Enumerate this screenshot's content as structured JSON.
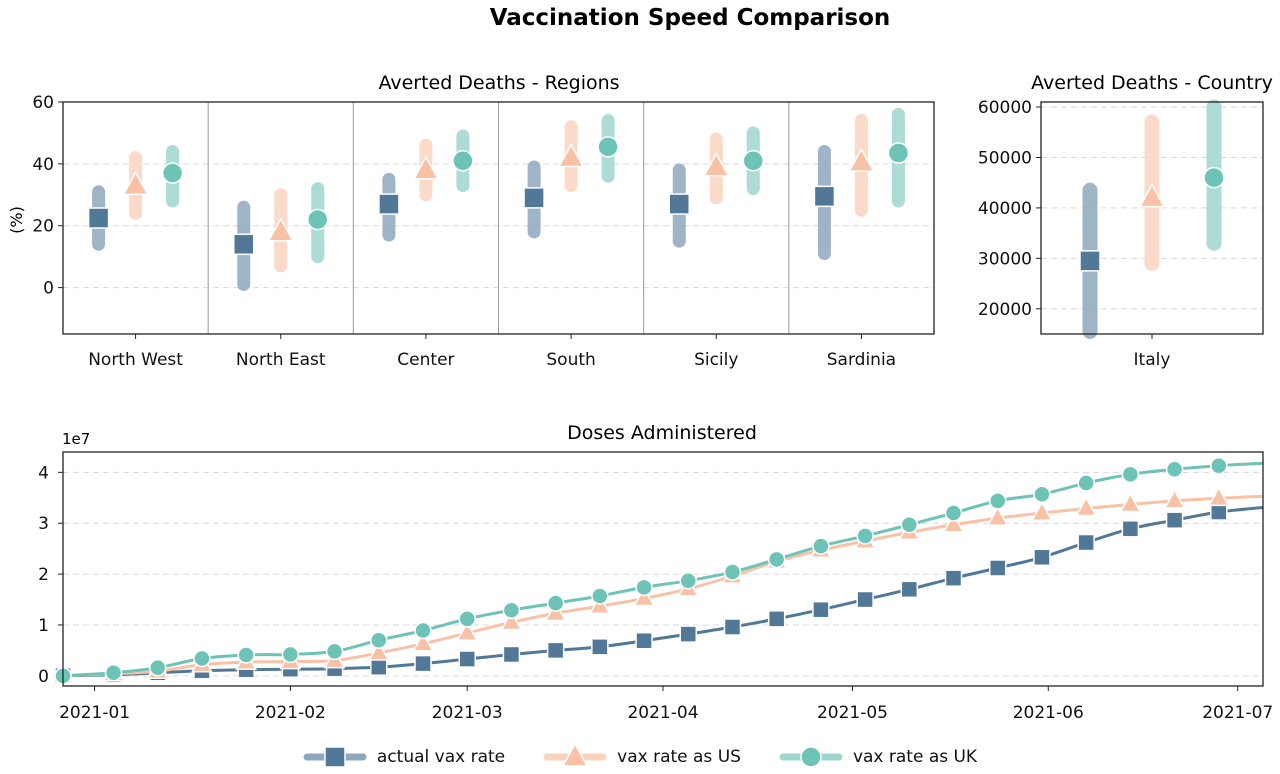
{
  "figure": {
    "title": "Vaccination Speed Comparison"
  },
  "series_styles": [
    {
      "key": "actual",
      "name": "actual vax rate",
      "color": "#517897",
      "light": "#8fa7bd",
      "marker": "square"
    },
    {
      "key": "us",
      "name": "vax rate as US",
      "color": "#f9c2a6",
      "light": "#fad3bf",
      "marker": "triangle"
    },
    {
      "key": "uk",
      "name": "vax rate as UK",
      "color": "#6ec3b7",
      "light": "#9ed6cd",
      "marker": "circle"
    }
  ],
  "chart_data": [
    {
      "type": "scatter",
      "title": "Averted Deaths - Regions",
      "ylabel": "(%)",
      "ylim": [
        -15,
        60
      ],
      "yticks": [
        0,
        20,
        40,
        60
      ],
      "grid": "horizontal dashed",
      "categories": [
        "North West",
        "North East",
        "Center",
        "South",
        "Sicily",
        "Sardinia"
      ],
      "series": [
        {
          "name": "actual vax rate",
          "values": [
            22.5,
            14,
            27,
            29,
            27,
            29.5
          ],
          "low": [
            14,
            1,
            17,
            18,
            15,
            11
          ],
          "high": [
            31,
            26,
            35,
            39,
            38,
            44
          ]
        },
        {
          "name": "vax rate as US",
          "values": [
            33,
            18,
            38,
            42,
            39,
            40.5
          ],
          "low": [
            24,
            7,
            30,
            33,
            29,
            25
          ],
          "high": [
            42,
            30,
            46,
            52,
            48,
            54
          ]
        },
        {
          "name": "vax rate as UK",
          "values": [
            37,
            22,
            41,
            45.5,
            41,
            43.5
          ],
          "low": [
            28,
            10,
            33,
            36,
            32,
            28
          ],
          "high": [
            44,
            32,
            49,
            54,
            50,
            56
          ]
        }
      ]
    },
    {
      "type": "scatter",
      "title": "Averted Deaths - Country",
      "ylim": [
        15000,
        61000
      ],
      "yticks": [
        20000,
        30000,
        40000,
        50000,
        60000
      ],
      "grid": "horizontal dashed",
      "categories": [
        "Italy"
      ],
      "series": [
        {
          "name": "actual vax rate",
          "values": [
            29500
          ],
          "low": [
            15500
          ],
          "high": [
            43500
          ]
        },
        {
          "name": "vax rate as US",
          "values": [
            42000
          ],
          "low": [
            29000
          ],
          "high": [
            57000
          ]
        },
        {
          "name": "vax rate as UK",
          "values": [
            46000
          ],
          "low": [
            33000
          ],
          "high": [
            60000
          ]
        }
      ]
    },
    {
      "type": "line",
      "title": "Doses Administered",
      "scale_label": "1e7",
      "ylim": [
        -0.2,
        4.4
      ],
      "yticks": [
        0,
        1,
        2,
        3,
        4
      ],
      "grid": "horizontal dashed",
      "xlim": [
        "2020-12-27",
        "2021-07-05"
      ],
      "xticks": [
        "2021-01",
        "2021-02",
        "2021-03",
        "2021-04",
        "2021-05",
        "2021-06",
        "2021-07"
      ],
      "xtick_dates": [
        "2021-01-01",
        "2021-02-01",
        "2021-03-01",
        "2021-04-01",
        "2021-05-01",
        "2021-06-01",
        "2021-07-01"
      ],
      "x": [
        "2020-12-27",
        "2021-01-04",
        "2021-01-11",
        "2021-01-18",
        "2021-01-25",
        "2021-02-01",
        "2021-02-08",
        "2021-02-15",
        "2021-02-22",
        "2021-03-01",
        "2021-03-08",
        "2021-03-15",
        "2021-03-22",
        "2021-03-29",
        "2021-04-05",
        "2021-04-12",
        "2021-04-19",
        "2021-04-26",
        "2021-05-03",
        "2021-05-10",
        "2021-05-17",
        "2021-05-24",
        "2021-05-31",
        "2021-06-07",
        "2021-06-14",
        "2021-06-21",
        "2021-06-28",
        "2021-07-05"
      ],
      "series": [
        {
          "name": "actual vax rate",
          "values": [
            0,
            0.02,
            0.06,
            0.1,
            0.12,
            0.13,
            0.14,
            0.17,
            0.24,
            0.33,
            0.42,
            0.5,
            0.57,
            0.69,
            0.82,
            0.96,
            1.12,
            1.3,
            1.5,
            1.7,
            1.92,
            2.12,
            2.33,
            2.62,
            2.89,
            3.06,
            3.22,
            3.31
          ]
        },
        {
          "name": "vax rate as US",
          "values": [
            0,
            0.04,
            0.09,
            0.22,
            0.27,
            0.28,
            0.3,
            0.45,
            0.63,
            0.84,
            1.05,
            1.23,
            1.37,
            1.52,
            1.71,
            1.96,
            2.25,
            2.47,
            2.65,
            2.82,
            2.97,
            3.1,
            3.2,
            3.29,
            3.37,
            3.44,
            3.49,
            3.53
          ]
        },
        {
          "name": "vax rate as UK",
          "values": [
            0,
            0.06,
            0.16,
            0.34,
            0.41,
            0.42,
            0.48,
            0.7,
            0.89,
            1.12,
            1.29,
            1.43,
            1.57,
            1.74,
            1.87,
            2.04,
            2.29,
            2.55,
            2.75,
            2.97,
            3.2,
            3.44,
            3.57,
            3.79,
            3.96,
            4.06,
            4.13,
            4.18
          ]
        }
      ]
    }
  ]
}
